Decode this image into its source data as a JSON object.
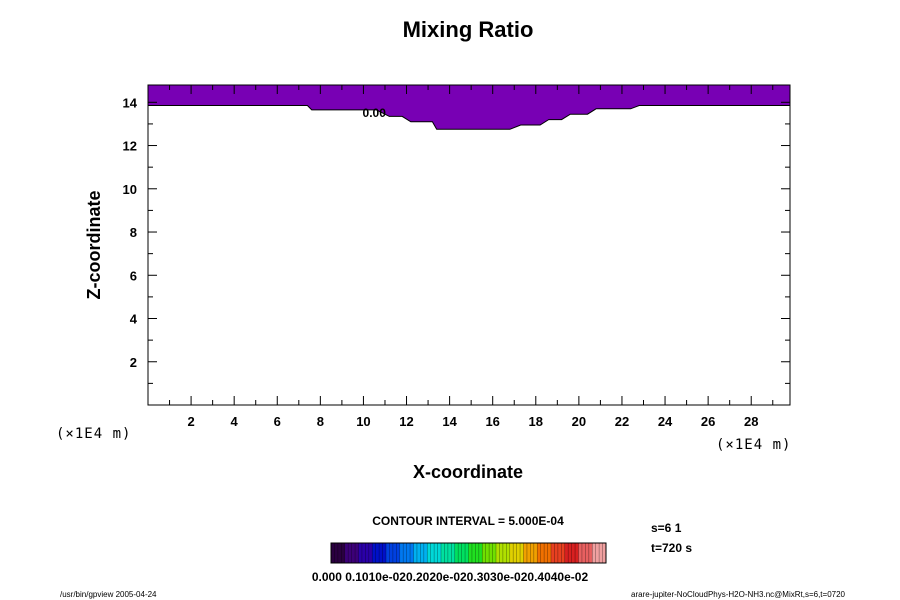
{
  "chart_data": {
    "type": "contour",
    "title": "Mixing Ratio",
    "xlabel": "X-coordinate",
    "ylabel": "Z-coordinate",
    "x_unit_label": "(×1E4 m)",
    "y_unit_label": "(×1E4 m)",
    "xlim": [
      0,
      29.8
    ],
    "ylim": [
      0,
      14.8
    ],
    "x_ticks": [
      2,
      4,
      6,
      8,
      10,
      12,
      14,
      16,
      18,
      20,
      22,
      24,
      26,
      28
    ],
    "y_ticks": [
      2,
      4,
      6,
      8,
      10,
      12,
      14
    ],
    "contour_label": "0.00",
    "contour_label_pos": [
      10.5,
      13.5
    ],
    "fill_color": "#7800b4",
    "filled_region_lower_boundary": [
      [
        0,
        13.85
      ],
      [
        7.4,
        13.85
      ],
      [
        7.6,
        13.65
      ],
      [
        10.6,
        13.65
      ],
      [
        11.2,
        13.35
      ],
      [
        11.8,
        13.35
      ],
      [
        12.2,
        13.1
      ],
      [
        13.2,
        13.1
      ],
      [
        13.4,
        12.75
      ],
      [
        16.8,
        12.75
      ],
      [
        17.3,
        12.95
      ],
      [
        18.2,
        12.95
      ],
      [
        18.6,
        13.2
      ],
      [
        19.2,
        13.2
      ],
      [
        19.6,
        13.45
      ],
      [
        20.4,
        13.45
      ],
      [
        20.8,
        13.7
      ],
      [
        22.4,
        13.7
      ],
      [
        22.8,
        13.85
      ],
      [
        29.8,
        13.85
      ]
    ],
    "contour_interval": "CONTOUR INTERVAL = 5.000E-04",
    "colorbar": {
      "labels": [
        "0.000",
        "0.1010e-02",
        "0.2020e-02",
        "0.3030e-02",
        "0.4040e-02"
      ],
      "label_text": "0.000 0.1010e-020.2020e-020.3030e-020.4040e-02",
      "colors": [
        "#2a0040",
        "#3c0078",
        "#2a00a8",
        "#0010c8",
        "#0040e0",
        "#0078f0",
        "#00b0f0",
        "#00d8d8",
        "#00e0a0",
        "#00e060",
        "#20e020",
        "#70e000",
        "#b0e000",
        "#e0d000",
        "#f0a000",
        "#f07000",
        "#e84020",
        "#d82020",
        "#e86060",
        "#f0a0a0"
      ]
    }
  },
  "info": {
    "slice": "s=6 1",
    "time": "t=720 s"
  },
  "footer": {
    "left": "/usr/bin/gpview 2005-04-24",
    "right": "arare-jupiter-NoCloudPhys-H2O-NH3.nc@MixRt,s=6,t=0720"
  }
}
